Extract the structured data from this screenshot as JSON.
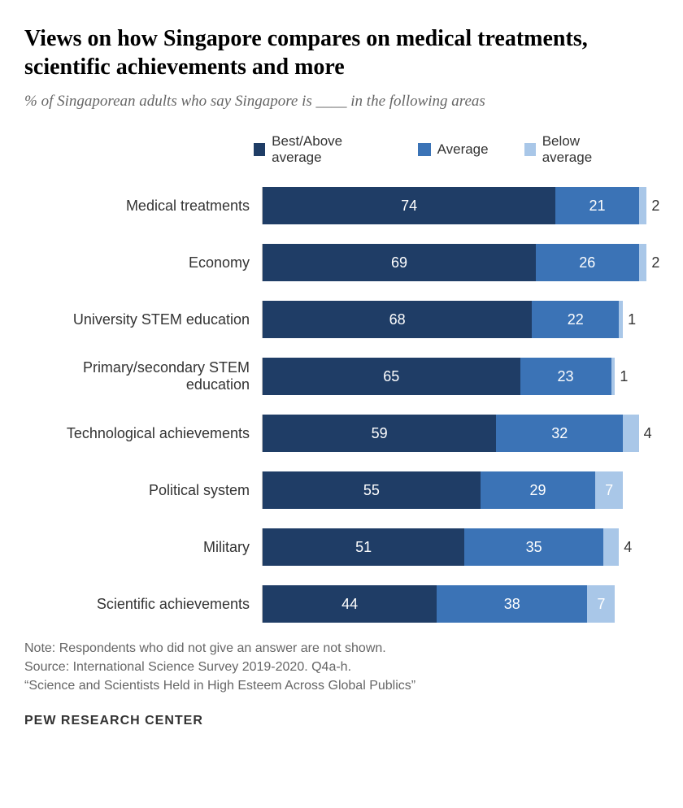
{
  "title": "Views on how Singapore compares on medical treatments, scientific achievements and more",
  "subtitle": "% of Singaporean adults who say Singapore is ____ in the following areas",
  "legend": {
    "best": "Best/Above average",
    "avg": "Average",
    "below": "Below average"
  },
  "colors": {
    "best": "#1f3d66",
    "avg": "#3b73b6",
    "below": "#a9c7e8",
    "background": "#ffffff",
    "text_muted": "#666666"
  },
  "chart": {
    "max": 100,
    "label_threshold": 5,
    "rows": [
      {
        "label": "Medical treatments",
        "best": 74,
        "avg": 21,
        "below": 2
      },
      {
        "label": "Economy",
        "best": 69,
        "avg": 26,
        "below": 2
      },
      {
        "label": "University STEM education",
        "best": 68,
        "avg": 22,
        "below": 1
      },
      {
        "label": "Primary/secondary STEM education",
        "best": 65,
        "avg": 23,
        "below": 1
      },
      {
        "label": "Technological achievements",
        "best": 59,
        "avg": 32,
        "below": 4
      },
      {
        "label": "Political system",
        "best": 55,
        "avg": 29,
        "below": 7
      },
      {
        "label": "Military",
        "best": 51,
        "avg": 35,
        "below": 4
      },
      {
        "label": "Scientific achievements",
        "best": 44,
        "avg": 38,
        "below": 7
      }
    ]
  },
  "note": "Note: Respondents who did not give an answer are not shown.",
  "source": "Source: International Science Survey 2019-2020. Q4a-h.",
  "quote": "“Science and Scientists Held in High Esteem Across Global Publics”",
  "footer": "PEW RESEARCH CENTER"
}
